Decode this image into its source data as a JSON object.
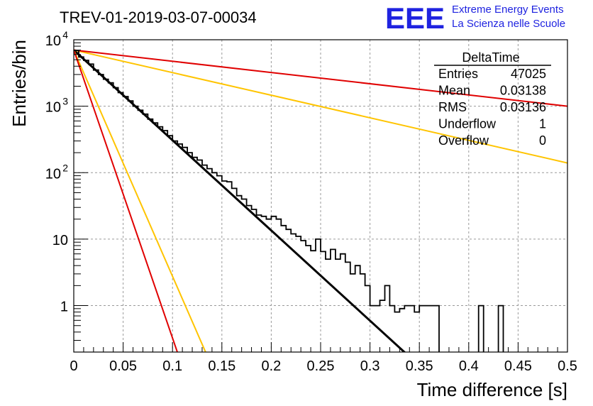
{
  "chart_data": {
    "type": "histogram",
    "title": "TREV-01-2019-03-07-00034",
    "xlabel": "Time difference [s]",
    "ylabel": "Entries/bin",
    "x_range": [
      0,
      0.5
    ],
    "y_range": [
      0.2,
      10000
    ],
    "y_log": true,
    "grid": true,
    "x_ticks": [
      "0",
      "0.05",
      "0.1",
      "0.15",
      "0.2",
      "0.25",
      "0.3",
      "0.35",
      "0.4",
      "0.45",
      "0.5"
    ],
    "y_ticks": [
      {
        "value": 1,
        "label": "1"
      },
      {
        "value": 10,
        "label": "10"
      },
      {
        "value": 100,
        "label": "10",
        "exp": "2"
      },
      {
        "value": 1000,
        "label": "10",
        "exp": "3"
      },
      {
        "value": 10000,
        "label": "10",
        "exp": "4"
      }
    ],
    "histogram": {
      "bin_width": 0.005,
      "values": [
        6900,
        5500,
        4900,
        4300,
        3500,
        3000,
        2550,
        2250,
        1900,
        1600,
        1400,
        1200,
        1000,
        870,
        760,
        640,
        560,
        490,
        430,
        360,
        300,
        270,
        240,
        200,
        170,
        155,
        130,
        115,
        100,
        90,
        75,
        73,
        58,
        45,
        40,
        32,
        28,
        23,
        22,
        20,
        22,
        20,
        16,
        14,
        12,
        11,
        9.5,
        8,
        6.7,
        10,
        6.5,
        5,
        7,
        5,
        6,
        4.5,
        3,
        4,
        3,
        2,
        1,
        1,
        1.2,
        2,
        1,
        0.8,
        0.9,
        1,
        1,
        0.8,
        1,
        1,
        1,
        1,
        0,
        0,
        0,
        0,
        0,
        0,
        0,
        0,
        1,
        0,
        0,
        0,
        1,
        0,
        0,
        0,
        0,
        0,
        0,
        0,
        0,
        0,
        0,
        0,
        0,
        0
      ],
      "color": "#000000"
    },
    "fits": [
      {
        "color": "#000000",
        "x": [
          0,
          0.34
        ],
        "y": [
          7000,
          0.17
        ]
      },
      {
        "color": "#ffc400",
        "x": [
          0,
          0.5
        ],
        "y": [
          7000,
          140
        ]
      },
      {
        "color": "#e00000",
        "x": [
          0,
          0.5
        ],
        "y": [
          7000,
          1000
        ]
      },
      {
        "color": "#ffc400",
        "x": [
          0,
          0.14
        ],
        "y": [
          7000,
          0.12
        ]
      },
      {
        "color": "#e00000",
        "x": [
          0,
          0.11
        ],
        "y": [
          7000,
          0.12
        ]
      }
    ],
    "stats": {
      "name": "DeltaTime",
      "rows": [
        {
          "label": "Entries",
          "value": "47025"
        },
        {
          "label": "Mean",
          "value": "0.03138"
        },
        {
          "label": "RMS",
          "value": "0.03136"
        },
        {
          "label": "Underflow",
          "value": "1"
        },
        {
          "label": "Overflow",
          "value": "0"
        }
      ]
    }
  },
  "logo": {
    "mark": "EEE",
    "line1": "Extreme Energy Events",
    "line2": "La Scienza nelle Scuole"
  }
}
